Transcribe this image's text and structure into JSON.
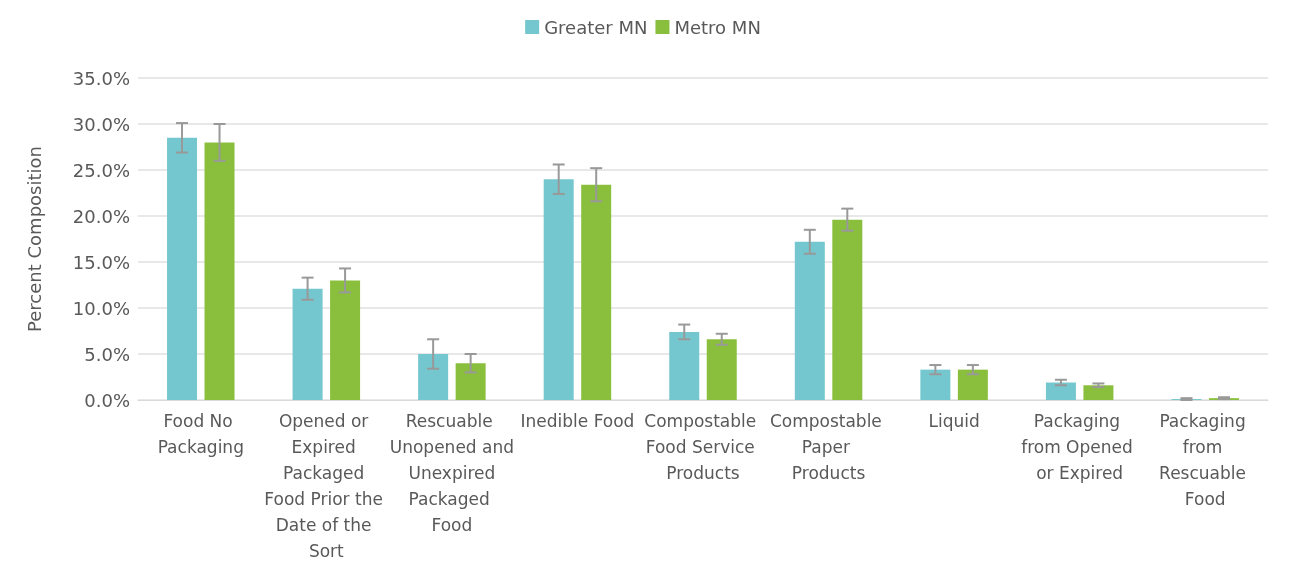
{
  "chart_data": {
    "type": "bar",
    "ylabel": "Percent Composition",
    "categories": [
      "Food No Packaging",
      "Opened or Expired Packaged Food Prior the Date of the Sort",
      "Rescuable Unopened and Unexpired Packaged Food",
      "Inedible Food",
      "Compostable Food Service Products",
      "Compostable Paper Products",
      "Liquid",
      "Packaging from Opened or Expired",
      "Packaging from Rescuable Food"
    ],
    "series": [
      {
        "name": "Greater MN",
        "color": "#74c7ce",
        "values": [
          28.5,
          12.1,
          5.0,
          24.0,
          7.4,
          17.2,
          3.3,
          1.9,
          0.1
        ],
        "errors": [
          1.6,
          1.2,
          1.6,
          1.6,
          0.8,
          1.3,
          0.5,
          0.3,
          0.1
        ]
      },
      {
        "name": "Metro MN",
        "color": "#8abf3e",
        "values": [
          28.0,
          13.0,
          4.0,
          23.4,
          6.6,
          19.6,
          3.3,
          1.6,
          0.2
        ],
        "errors": [
          2.0,
          1.3,
          1.0,
          1.8,
          0.6,
          1.2,
          0.5,
          0.2,
          0.1
        ]
      }
    ],
    "ylim": [
      0,
      35
    ],
    "yticks": [
      {
        "value": 0,
        "label": "0.0%"
      },
      {
        "value": 5,
        "label": "5.0%"
      },
      {
        "value": 10,
        "label": "10.0%"
      },
      {
        "value": 15,
        "label": "15.0%"
      },
      {
        "value": 20,
        "label": "20.0%"
      },
      {
        "value": 25,
        "label": "25.0%"
      },
      {
        "value": 30,
        "label": "30.0%"
      },
      {
        "value": 35,
        "label": "35.0%"
      }
    ],
    "grid": "y",
    "legend": "top"
  }
}
